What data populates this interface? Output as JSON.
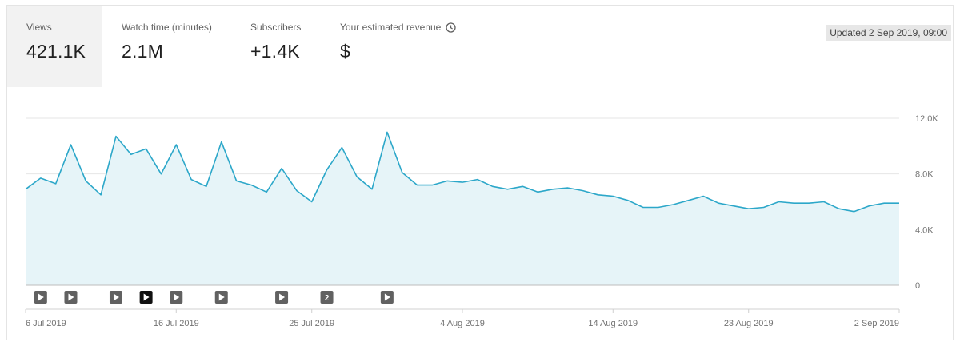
{
  "metrics": [
    {
      "label": "Views",
      "value": "421.1K",
      "active": true
    },
    {
      "label": "Watch time (minutes)",
      "value": "2.1M",
      "active": false
    },
    {
      "label": "Subscribers",
      "value": "+1.4K",
      "active": false
    },
    {
      "label": "Your estimated revenue",
      "value": "$",
      "active": false,
      "icon": "clock-icon"
    }
  ],
  "updated_label": "Updated 2 Sep 2019, 09:00",
  "colors": {
    "line": "#2ca7c9",
    "area": "#e6f4f8",
    "grid": "#e6e6e6",
    "marker": "#616161",
    "marker_active": "#111111"
  },
  "markers": [
    {
      "day": 1,
      "label": "",
      "icon": "play-icon",
      "active": false
    },
    {
      "day": 3,
      "label": "",
      "icon": "play-icon",
      "active": false
    },
    {
      "day": 6,
      "label": "",
      "icon": "play-icon",
      "active": false
    },
    {
      "day": 8,
      "label": "",
      "icon": "play-icon",
      "active": true
    },
    {
      "day": 10,
      "label": "",
      "icon": "play-icon",
      "active": false
    },
    {
      "day": 13,
      "label": "",
      "icon": "play-icon",
      "active": false
    },
    {
      "day": 17,
      "label": "",
      "icon": "play-icon",
      "active": false
    },
    {
      "day": 20,
      "label": "2",
      "icon": "count-badge",
      "active": false
    },
    {
      "day": 24,
      "label": "",
      "icon": "play-icon",
      "active": false
    }
  ],
  "chart_data": {
    "type": "area",
    "series": [
      {
        "name": "Views"
      }
    ],
    "x": [
      "2019-07-06",
      "2019-07-07",
      "2019-07-08",
      "2019-07-09",
      "2019-07-10",
      "2019-07-11",
      "2019-07-12",
      "2019-07-13",
      "2019-07-14",
      "2019-07-15",
      "2019-07-16",
      "2019-07-17",
      "2019-07-18",
      "2019-07-19",
      "2019-07-20",
      "2019-07-21",
      "2019-07-22",
      "2019-07-23",
      "2019-07-24",
      "2019-07-25",
      "2019-07-26",
      "2019-07-27",
      "2019-07-28",
      "2019-07-29",
      "2019-07-30",
      "2019-07-31",
      "2019-08-01",
      "2019-08-02",
      "2019-08-03",
      "2019-08-04",
      "2019-08-05",
      "2019-08-06",
      "2019-08-07",
      "2019-08-08",
      "2019-08-09",
      "2019-08-10",
      "2019-08-11",
      "2019-08-12",
      "2019-08-13",
      "2019-08-14",
      "2019-08-15",
      "2019-08-16",
      "2019-08-17",
      "2019-08-18",
      "2019-08-19",
      "2019-08-20",
      "2019-08-21",
      "2019-08-22",
      "2019-08-23",
      "2019-08-24",
      "2019-08-25",
      "2019-08-26",
      "2019-08-27",
      "2019-08-28",
      "2019-08-29",
      "2019-08-30",
      "2019-08-31",
      "2019-09-01",
      "2019-09-02"
    ],
    "values": [
      6900,
      7700,
      7300,
      10100,
      7500,
      6500,
      10700,
      9400,
      9800,
      8000,
      10100,
      7600,
      7100,
      10300,
      7500,
      7200,
      6700,
      8400,
      6800,
      6000,
      8300,
      9900,
      7800,
      6900,
      11000,
      8100,
      7200,
      7200,
      7500,
      7400,
      7600,
      7100,
      6900,
      7100,
      6700,
      6900,
      7000,
      6800,
      6500,
      6400,
      6100,
      5600,
      5600,
      5800,
      6100,
      6400,
      5900,
      5700,
      5500,
      5600,
      6000,
      5900,
      5900,
      6000,
      5500,
      5300,
      5700,
      5900,
      5900
    ],
    "y_ticks": [
      {
        "value": 0,
        "label": "0"
      },
      {
        "value": 4000,
        "label": "4.0K"
      },
      {
        "value": 8000,
        "label": "8.0K"
      },
      {
        "value": 12000,
        "label": "12.0K"
      }
    ],
    "x_ticks": [
      {
        "date": "2019-07-06",
        "label": "6 Jul 2019"
      },
      {
        "date": "2019-07-16",
        "label": "16 Jul 2019"
      },
      {
        "date": "2019-07-25",
        "label": "25 Jul 2019"
      },
      {
        "date": "2019-08-04",
        "label": "4 Aug 2019"
      },
      {
        "date": "2019-08-14",
        "label": "14 Aug 2019"
      },
      {
        "date": "2019-08-23",
        "label": "23 Aug 2019"
      },
      {
        "date": "2019-09-02",
        "label": "2 Sep 2019"
      }
    ],
    "ylim": [
      0,
      12000
    ],
    "grid": true
  }
}
